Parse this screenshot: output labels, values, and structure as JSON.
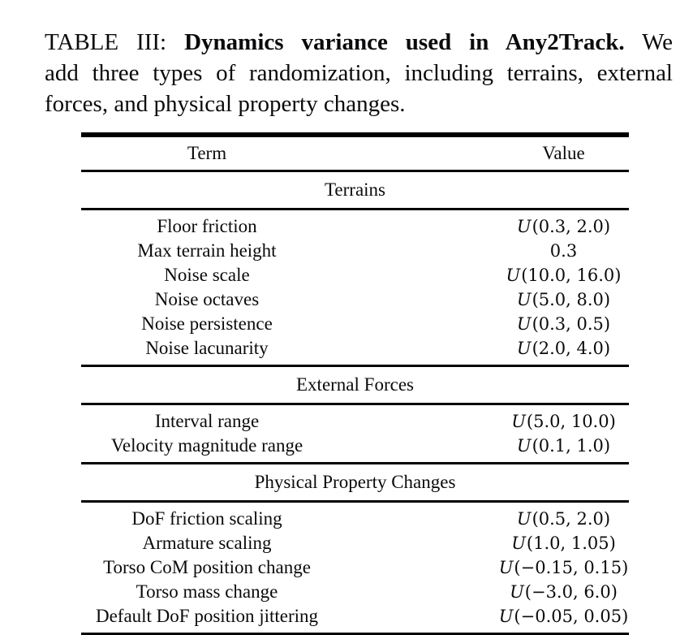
{
  "caption": {
    "line1_label": "TABLE III:",
    "line1_bold": "Dynamics variance used in Any2Track.",
    "line1_tail": "We",
    "line2": "add three types of randomization, including terrains, external",
    "line3": "forces, and physical property changes."
  },
  "table": {
    "columns": [
      "Term",
      "Value"
    ],
    "uniform_symbol": "U",
    "sections": [
      {
        "header": "Terrains",
        "rows": [
          {
            "term": "Floor friction",
            "value": {
              "type": "uniform",
              "args": "(0.3, 2.0)"
            }
          },
          {
            "term": "Max terrain height",
            "value": {
              "type": "plain",
              "text": "0.3"
            }
          },
          {
            "term": "Noise scale",
            "value": {
              "type": "uniform",
              "args": "(10.0, 16.0)"
            }
          },
          {
            "term": "Noise octaves",
            "value": {
              "type": "uniform",
              "args": "(5.0, 8.0)"
            }
          },
          {
            "term": "Noise persistence",
            "value": {
              "type": "uniform",
              "args": "(0.3, 0.5)"
            }
          },
          {
            "term": "Noise lacunarity",
            "value": {
              "type": "uniform",
              "args": "(2.0, 4.0)"
            }
          }
        ]
      },
      {
        "header": "External Forces",
        "rows": [
          {
            "term": "Interval range",
            "value": {
              "type": "uniform",
              "args": "(5.0, 10.0)"
            }
          },
          {
            "term": "Velocity magnitude range",
            "value": {
              "type": "uniform",
              "args": "(0.1, 1.0)"
            }
          }
        ]
      },
      {
        "header": "Physical Property Changes",
        "rows": [
          {
            "term": "DoF friction scaling",
            "value": {
              "type": "uniform",
              "args": "(0.5, 2.0)"
            }
          },
          {
            "term": "Armature scaling",
            "value": {
              "type": "uniform",
              "args": "(1.0, 1.05)"
            }
          },
          {
            "term": "Torso CoM position change",
            "value": {
              "type": "uniform",
              "args": "(−0.15, 0.15)"
            }
          },
          {
            "term": "Torso mass change",
            "value": {
              "type": "uniform",
              "args": "(−3.0, 6.0)"
            }
          },
          {
            "term": "Default DoF position jittering",
            "value": {
              "type": "uniform",
              "args": "(−0.05, 0.05)"
            }
          }
        ]
      }
    ]
  }
}
